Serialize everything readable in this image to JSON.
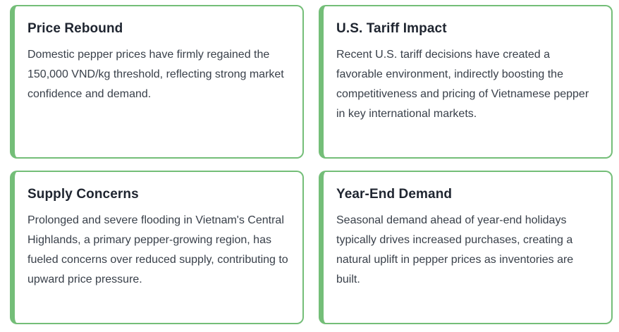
{
  "theme": {
    "accent_green": "#74be78",
    "card_background": "#ffffff",
    "page_background": "#ffffff",
    "title_color": "#1f2530",
    "body_color": "#39404a"
  },
  "cards": [
    {
      "title": "Price Rebound",
      "body": "Domestic pepper prices have firmly regained the 150,000 VND/kg threshold, reflecting strong market confidence and demand."
    },
    {
      "title": "U.S. Tariff Impact",
      "body": "Recent U.S. tariff decisions have created a favorable environment, indirectly boosting the competitiveness and pricing of Vietnamese pepper in key international markets."
    },
    {
      "title": "Supply Concerns",
      "body": "Prolonged and severe flooding in Vietnam's Central Highlands, a primary pepper-growing region, has fueled concerns over reduced supply, contributing to upward price pressure."
    },
    {
      "title": "Year-End Demand",
      "body": "Seasonal demand ahead of year-end holidays typically drives increased purchases, creating a natural uplift in pepper prices as inventories are built."
    }
  ]
}
